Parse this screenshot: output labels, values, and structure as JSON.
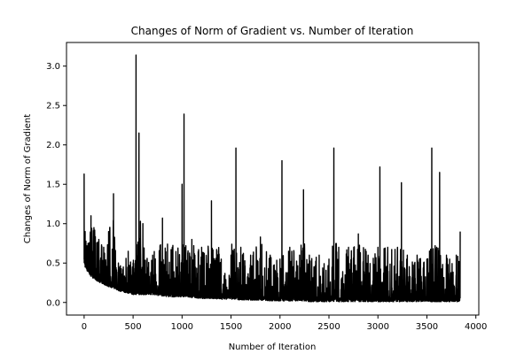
{
  "chart_data": {
    "type": "line",
    "title": "Changes of Norm of Gradient vs. Number of Iteration",
    "xlabel": "Number of Iteration",
    "ylabel": "Changes of Norm of Gradient",
    "xlim": [
      -180,
      4030
    ],
    "ylim": [
      -0.16,
      3.3
    ],
    "x_ticks": [
      0,
      500,
      1000,
      1500,
      2000,
      2500,
      3000,
      3500,
      4000
    ],
    "x_tick_labels": [
      "0",
      "500",
      "1000",
      "1500",
      "2000",
      "2500",
      "3000",
      "3500",
      "4000"
    ],
    "y_ticks": [
      0.0,
      0.5,
      1.0,
      1.5,
      2.0,
      2.5,
      3.0
    ],
    "y_tick_labels": [
      "0.0",
      "0.5",
      "1.0",
      "1.5",
      "2.0",
      "2.5",
      "3.0"
    ],
    "grid": false,
    "line_color": "#000000",
    "series": [
      {
        "x": [
          0,
          10,
          40,
          70,
          100,
          150,
          200,
          250,
          300,
          350,
          400,
          450,
          500,
          530,
          560,
          600,
          700,
          800,
          900,
          1000,
          1020,
          1100,
          1200,
          1300,
          1400,
          1500,
          1550,
          1600,
          1700,
          1800,
          1900,
          2000,
          2020,
          2100,
          2200,
          2240,
          2300,
          2400,
          2500,
          2550,
          2600,
          2700,
          2800,
          2900,
          3000,
          3020,
          3100,
          3200,
          3240,
          3300,
          3400,
          3500,
          3550,
          3600,
          3630,
          3700,
          3800,
          3840
        ],
        "y": [
          1.63,
          0.9,
          0.75,
          1.1,
          0.95,
          0.8,
          0.7,
          0.9,
          1.38,
          0.5,
          0.45,
          0.65,
          0.5,
          3.14,
          2.15,
          1.0,
          0.6,
          1.07,
          0.7,
          1.5,
          2.39,
          0.8,
          0.7,
          1.29,
          0.55,
          0.6,
          1.96,
          0.7,
          0.6,
          0.83,
          0.6,
          0.55,
          1.8,
          0.7,
          0.6,
          1.43,
          0.6,
          0.6,
          0.55,
          1.96,
          0.7,
          0.7,
          0.87,
          0.6,
          0.7,
          1.72,
          0.7,
          0.7,
          1.52,
          0.6,
          0.6,
          0.55,
          1.96,
          0.7,
          1.65,
          0.6,
          0.6,
          0.9
        ],
        "baseline": [
          0.5,
          0.45,
          0.38,
          0.33,
          0.3,
          0.26,
          0.23,
          0.2,
          0.18,
          0.15,
          0.13,
          0.12,
          0.1,
          0.1,
          0.1,
          0.1,
          0.1,
          0.08,
          0.07,
          0.07,
          0.07,
          0.06,
          0.05,
          0.05,
          0.04,
          0.04,
          0.04,
          0.03,
          0.03,
          0.03,
          0.02,
          0.02,
          0.02,
          0.02,
          0.02,
          0.02,
          0.01,
          0.01,
          0.01,
          0.01,
          0.01,
          0.01,
          0.01,
          0.01,
          0.01,
          0.01,
          0.01,
          0.01,
          0.01,
          0.01,
          0.01,
          0.01,
          0.01,
          0.01,
          0.01,
          0.01,
          0.01,
          0.01
        ]
      }
    ]
  }
}
